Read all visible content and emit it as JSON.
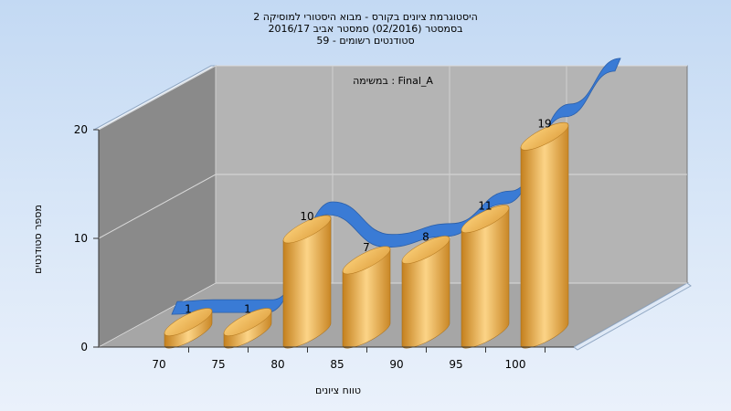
{
  "chart_data": {
    "type": "bar",
    "title_lines": [
      "היסטוגרמת ציונים בקורס - מבוא היסטורי למוסיקה 2",
      "בסמסטר  (02/2016)  סמסטר אביב 2016/17",
      "סטודנטים רשומים - 59"
    ],
    "annotation": "במשימה : Final_A",
    "xlabel": "טווח ציונים",
    "ylabel": "מספר סטודנטים",
    "categories": [
      "70",
      "75",
      "80",
      "85",
      "90",
      "95",
      "100"
    ],
    "values": [
      1,
      1,
      10,
      7,
      8,
      11,
      19
    ],
    "y_ticks": [
      "0",
      "10",
      "20"
    ],
    "ylim": [
      0,
      20
    ],
    "grid": true,
    "bar_color": "#f0b552",
    "trend_color": "#3a7bd5",
    "wall_back_color": "#b4b4b4",
    "wall_side_color": "#8a8a8a",
    "floor_color": "#a6a6a6"
  }
}
